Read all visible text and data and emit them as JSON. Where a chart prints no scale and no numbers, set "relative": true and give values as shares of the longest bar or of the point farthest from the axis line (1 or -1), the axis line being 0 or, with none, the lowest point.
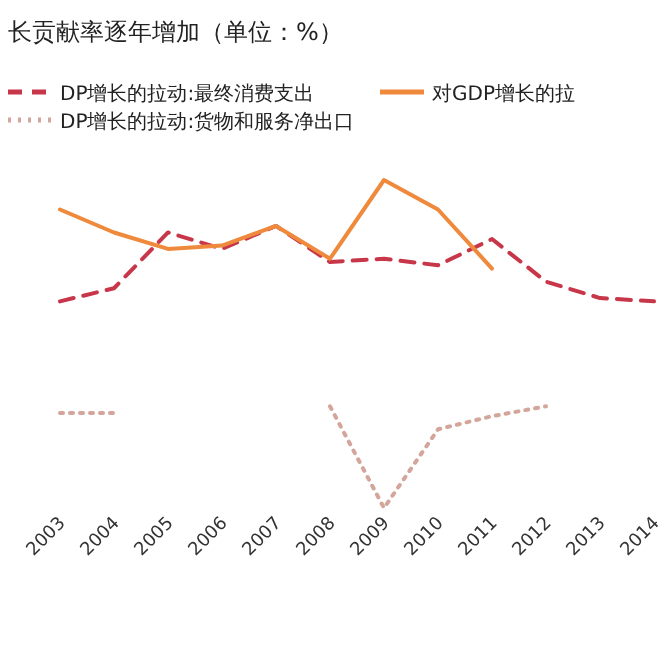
{
  "chart_data": {
    "type": "line",
    "relative": true,
    "title": "长贡献率逐年增加（单位：%）",
    "legend": "top",
    "categories": [
      "2003",
      "2004",
      "2005",
      "2006",
      "2007",
      "2008",
      "2009",
      "2010",
      "2011",
      "2012",
      "2013",
      "2014"
    ],
    "series": [
      {
        "name": "DP增长的拉动:最终消费支出",
        "color": "#c8364a",
        "line_style": "dashed",
        "values": [
          0.63,
          0.67,
          0.84,
          0.79,
          0.86,
          0.75,
          0.76,
          0.74,
          0.82,
          0.69,
          0.64,
          0.63
        ]
      },
      {
        "name": "DP增长的拉动:货物和服务净出口",
        "color": "#d4a59a",
        "line_style": "dotted",
        "values": [
          0.29,
          0.29,
          null,
          null,
          null,
          0.31,
          0.0,
          0.24,
          0.28,
          0.31,
          null,
          null
        ]
      },
      {
        "name": "对GDP增长的拉",
        "color": "#ef8a3c",
        "line_style": "solid",
        "values": [
          0.91,
          0.84,
          0.79,
          0.8,
          0.86,
          0.76,
          1.0,
          0.91,
          0.73,
          null,
          null,
          null
        ]
      }
    ]
  }
}
